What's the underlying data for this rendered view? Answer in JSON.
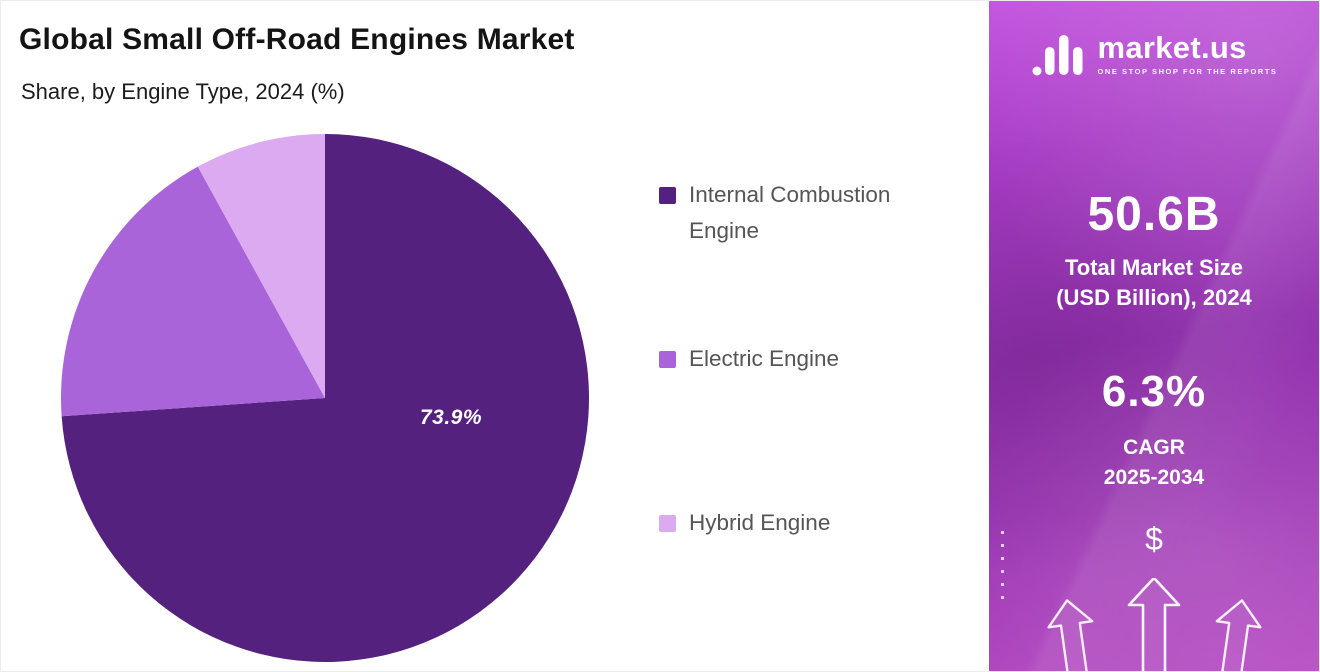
{
  "header": {
    "title": "Global Small Off-Road Engines Market",
    "subtitle": "Share, by Engine Type, 2024 (%)"
  },
  "chart_data": {
    "type": "pie",
    "title": "Global Small Off-Road Engines Market",
    "subtitle": "Share, by Engine Type, 2024 (%)",
    "categories": [
      "Internal Combustion Engine",
      "Electric Engine",
      "Hybrid Engine"
    ],
    "values": [
      73.9,
      18.1,
      8.0
    ],
    "colors": [
      "#54217f",
      "#a964d9",
      "#dcaaf0"
    ],
    "visible_label": "73.9%",
    "legend_position": "right",
    "start_angle": "top",
    "direction": "clockwise"
  },
  "sidebar": {
    "logo": {
      "brand": "market.us",
      "tagline": "ONE STOP SHOP FOR THE REPORTS"
    },
    "stats": [
      {
        "value": "50.6B",
        "label_line1": "Total Market Size",
        "label_line2": "(USD Billion), 2024"
      },
      {
        "value": "6.3%",
        "label_line1": "CAGR",
        "label_line2": "2025-2034"
      }
    ],
    "dollar_sign": "$",
    "accent_colors": {
      "gradient_top": "#c355de",
      "gradient_mid": "#9130ae",
      "gradient_bottom": "#b84ec4"
    }
  }
}
